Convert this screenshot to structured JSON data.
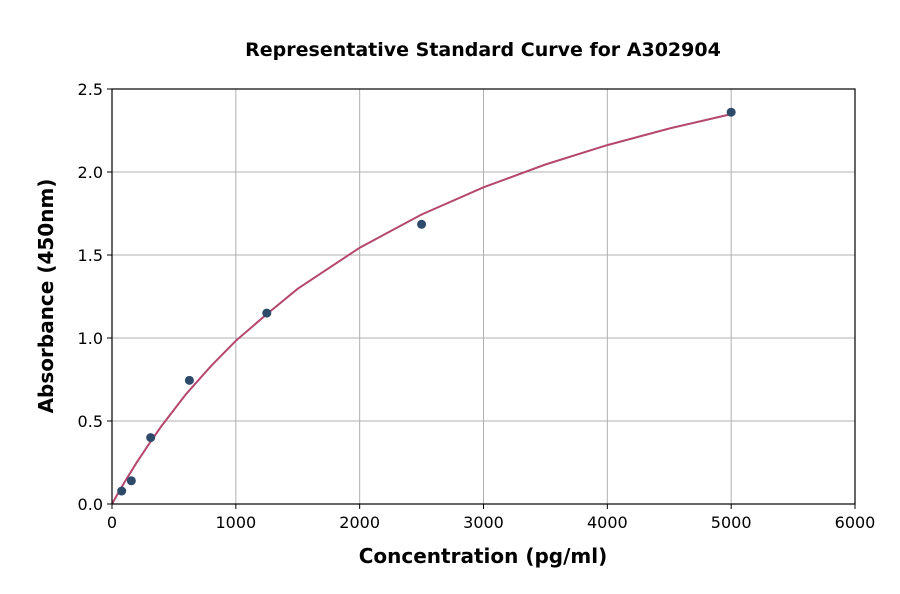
{
  "chart_data": {
    "type": "scatter",
    "title": "Representative Standard Curve for A302904",
    "xlabel": "Concentration (pg/ml)",
    "ylabel": "Absorbance (450nm)",
    "xlim": [
      0,
      6000
    ],
    "ylim": [
      0,
      2.5
    ],
    "xticks": [
      "0",
      "1000",
      "2000",
      "3000",
      "4000",
      "5000",
      "6000"
    ],
    "yticks": [
      "0.0",
      "0.5",
      "1.0",
      "1.5",
      "2.0",
      "2.5"
    ],
    "grid": true,
    "legend": "none",
    "points": {
      "x": [
        78.125,
        156.25,
        312.5,
        625,
        1250,
        2500,
        5000
      ],
      "y": [
        0.078,
        0.14,
        0.4,
        0.745,
        1.15,
        1.685,
        2.36
      ],
      "color": "#2e4a6b"
    },
    "fit_curve": {
      "x": [
        0,
        50,
        100,
        200,
        300,
        400,
        600,
        800,
        1000,
        1250,
        1500,
        2000,
        2500,
        3000,
        3500,
        4000,
        4500,
        5000
      ],
      "y": [
        0,
        0.066,
        0.13,
        0.251,
        0.363,
        0.47,
        0.664,
        0.832,
        0.983,
        1.144,
        1.297,
        1.544,
        1.744,
        1.908,
        2.045,
        2.162,
        2.262,
        2.349
      ],
      "color": "#b5476f"
    }
  }
}
